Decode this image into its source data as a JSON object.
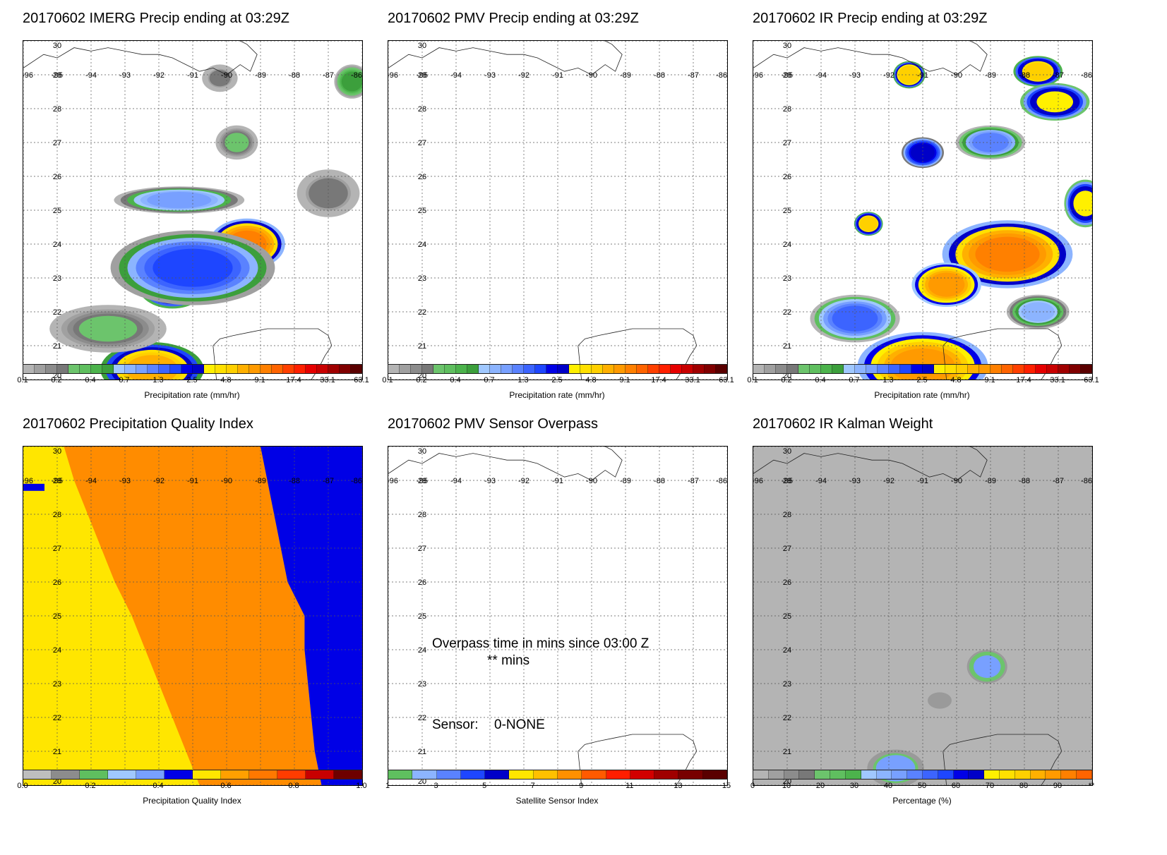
{
  "chart_data": [
    {
      "type": "heatmap",
      "title": "20170602 IMERG Precip ending at 03:29Z",
      "x_ticks": [
        "-96",
        "-95",
        "-94",
        "-93",
        "-92",
        "-91",
        "-90",
        "-89",
        "-88",
        "-87",
        "-86"
      ],
      "y_ticks": [
        "20",
        "21",
        "22",
        "23",
        "24",
        "25",
        "26",
        "27",
        "28",
        "29",
        "30"
      ],
      "xlim": [
        -96,
        -86
      ],
      "ylim": [
        20,
        30
      ],
      "colorbar": {
        "label": "Precipitation rate (mm/hr)",
        "tick_labels": [
          "0.1",
          "0.2",
          "0.4",
          "0.7",
          "1.3",
          "2.5",
          "4.8",
          "9.1",
          "17.4",
          "33.1",
          "63.1"
        ],
        "colors": [
          "#b4b4b4",
          "#a0a0a0",
          "#8c8c8c",
          "#787878",
          "#6cc46c",
          "#5fbf5f",
          "#4cb34c",
          "#3c9f3c",
          "#a0c8ff",
          "#8cb4ff",
          "#78a0ff",
          "#5a82ff",
          "#3c64ff",
          "#1e46ff",
          "#0000e6",
          "#0000c8",
          "#fff000",
          "#ffe000",
          "#ffd000",
          "#ffb000",
          "#ff9a00",
          "#ff8000",
          "#ff6400",
          "#ff4000",
          "#ff2000",
          "#e60000",
          "#c80000",
          "#a00000",
          "#800000",
          "#5a0000"
        ]
      },
      "features": [
        {
          "type": "blob",
          "lon": -89.4,
          "lat": 24.0,
          "rx": 1.0,
          "ry": 0.65,
          "intensity": 10
        },
        {
          "type": "blob",
          "lon": -91.6,
          "lat": 22.8,
          "rx": 0.9,
          "ry": 0.6,
          "intensity": 6
        },
        {
          "type": "blob",
          "lon": -91.0,
          "lat": 23.3,
          "rx": 2.3,
          "ry": 1.0,
          "intensity": 2
        },
        {
          "type": "blob",
          "lon": -92.2,
          "lat": 20.3,
          "rx": 1.4,
          "ry": 0.7,
          "intensity": 7
        },
        {
          "type": "blob",
          "lon": -91.4,
          "lat": 25.3,
          "rx": 1.8,
          "ry": 0.3,
          "intensity": 1
        },
        {
          "type": "blob",
          "lon": -93.5,
          "lat": 21.5,
          "rx": 1.6,
          "ry": 0.6,
          "intensity": 0.3
        },
        {
          "type": "blob",
          "lon": -86.3,
          "lat": 28.8,
          "rx": 0.4,
          "ry": 0.4,
          "intensity": 0.6
        },
        {
          "type": "blob",
          "lon": -89.7,
          "lat": 27.0,
          "rx": 0.5,
          "ry": 0.4,
          "intensity": 0.3
        },
        {
          "type": "blob",
          "lon": -87.0,
          "lat": 25.5,
          "rx": 0.8,
          "ry": 0.6,
          "intensity": 0.25
        },
        {
          "type": "blob",
          "lon": -90.2,
          "lat": 28.9,
          "rx": 0.4,
          "ry": 0.3,
          "intensity": 0.2
        }
      ]
    },
    {
      "type": "heatmap",
      "title": "20170602 PMV Precip ending at 03:29Z",
      "x_ticks": [
        "-96",
        "-95",
        "-94",
        "-93",
        "-92",
        "-91",
        "-90",
        "-89",
        "-88",
        "-87",
        "-86"
      ],
      "y_ticks": [
        "20",
        "21",
        "22",
        "23",
        "24",
        "25",
        "26",
        "27",
        "28",
        "29",
        "30"
      ],
      "xlim": [
        -96,
        -86
      ],
      "ylim": [
        20,
        30
      ],
      "colorbar": {
        "label": "Precipitation rate (mm/hr)",
        "tick_labels": [
          "0.1",
          "0.2",
          "0.4",
          "0.7",
          "1.3",
          "2.5",
          "4.8",
          "9.1",
          "17.4",
          "33.1",
          "63.1"
        ]
      },
      "features": []
    },
    {
      "type": "heatmap",
      "title": "20170602 IR Precip ending at 03:29Z",
      "x_ticks": [
        "-96",
        "-95",
        "-94",
        "-93",
        "-92",
        "-91",
        "-90",
        "-89",
        "-88",
        "-87",
        "-86"
      ],
      "y_ticks": [
        "20",
        "21",
        "22",
        "23",
        "24",
        "25",
        "26",
        "27",
        "28",
        "29",
        "30"
      ],
      "xlim": [
        -96,
        -86
      ],
      "ylim": [
        20,
        30
      ],
      "colorbar": {
        "label": "Precipitation rate (mm/hr)",
        "tick_labels": [
          "0.1",
          "0.2",
          "0.4",
          "0.7",
          "1.3",
          "2.5",
          "4.8",
          "9.1",
          "17.4",
          "33.1",
          "63.1"
        ]
      },
      "features": [
        {
          "type": "blob",
          "lon": -88.5,
          "lat": 23.7,
          "rx": 1.8,
          "ry": 0.9,
          "intensity": 10
        },
        {
          "type": "blob",
          "lon": -90.3,
          "lat": 22.8,
          "rx": 0.9,
          "ry": 0.55,
          "intensity": 8
        },
        {
          "type": "blob",
          "lon": -91.0,
          "lat": 20.4,
          "rx": 1.8,
          "ry": 0.9,
          "intensity": 9
        },
        {
          "type": "blob",
          "lon": -87.6,
          "lat": 29.1,
          "rx": 0.6,
          "ry": 0.35,
          "intensity": 5
        },
        {
          "type": "blob",
          "lon": -87.1,
          "lat": 28.2,
          "rx": 0.9,
          "ry": 0.45,
          "intensity": 4
        },
        {
          "type": "blob",
          "lon": -91.4,
          "lat": 29.0,
          "rx": 0.35,
          "ry": 0.3,
          "intensity": 6
        },
        {
          "type": "blob",
          "lon": -92.6,
          "lat": 24.6,
          "rx": 0.3,
          "ry": 0.25,
          "intensity": 5
        },
        {
          "type": "blob",
          "lon": -91.0,
          "lat": 26.7,
          "rx": 0.5,
          "ry": 0.35,
          "intensity": 3
        },
        {
          "type": "blob",
          "lon": -86.2,
          "lat": 25.2,
          "rx": 0.5,
          "ry": 0.6,
          "intensity": 4
        },
        {
          "type": "blob",
          "lon": -93.0,
          "lat": 21.8,
          "rx": 1.2,
          "ry": 0.6,
          "intensity": 1.5
        },
        {
          "type": "blob",
          "lon": -87.6,
          "lat": 22.0,
          "rx": 0.8,
          "ry": 0.4,
          "intensity": 0.8
        },
        {
          "type": "blob",
          "lon": -89.0,
          "lat": 27.0,
          "rx": 0.9,
          "ry": 0.4,
          "intensity": 1.2
        }
      ]
    },
    {
      "type": "heatmap",
      "title": "20170602 Precipitation Quality Index",
      "x_ticks": [
        "-96",
        "-95",
        "-94",
        "-93",
        "-92",
        "-91",
        "-90",
        "-89",
        "-88",
        "-87",
        "-86"
      ],
      "y_ticks": [
        "20",
        "21",
        "22",
        "23",
        "24",
        "25",
        "26",
        "27",
        "28",
        "29",
        "30"
      ],
      "xlim": [
        -96,
        -86
      ],
      "ylim": [
        20,
        30
      ],
      "colorbar": {
        "label": "Precipitation Quality Index",
        "tick_labels": [
          "0.0",
          "0.2",
          "0.4",
          "0.6",
          "0.8",
          "1.0"
        ],
        "colors": [
          "#bebebe",
          "#8c8c8c",
          "#5fbf5f",
          "#a0c8ff",
          "#78a0ff",
          "#0000e6",
          "#ffe600",
          "#ffa000",
          "#ff7800",
          "#ff3c00",
          "#c80000",
          "#6e0000"
        ]
      },
      "regions": [
        {
          "name": "yellow",
          "value": 0.65,
          "color": "#ffe600"
        },
        {
          "name": "orange",
          "value": 0.78,
          "color": "#ff8c00"
        },
        {
          "name": "blue",
          "value": 0.47,
          "color": "#0000e6"
        }
      ]
    },
    {
      "type": "heatmap",
      "title": "20170602 PMV Sensor Overpass",
      "x_ticks": [
        "-96",
        "-95",
        "-94",
        "-93",
        "-92",
        "-91",
        "-90",
        "-89",
        "-88",
        "-87",
        "-86"
      ],
      "y_ticks": [
        "20",
        "21",
        "22",
        "23",
        "24",
        "25",
        "26",
        "27",
        "28",
        "29",
        "30"
      ],
      "xlim": [
        -96,
        -86
      ],
      "ylim": [
        20,
        30
      ],
      "annotations": {
        "overpass_line1": "Overpass time in mins since 03:00 Z",
        "overpass_line2": "** mins",
        "sensor_label": "Sensor:",
        "sensor_value": "0-NONE"
      },
      "colorbar": {
        "label": "Satellite Sensor Index",
        "tick_labels": [
          "1",
          "3",
          "5",
          "7",
          "9",
          "11",
          "13",
          "15"
        ],
        "colors": [
          "#5fbf5f",
          "#8cb4ff",
          "#5a82ff",
          "#1e46ff",
          "#0000c8",
          "#ffe600",
          "#ffc000",
          "#ff9000",
          "#ff5a00",
          "#ff1e00",
          "#d20000",
          "#a00000",
          "#780000",
          "#5a0000"
        ]
      },
      "features": []
    },
    {
      "type": "heatmap",
      "title": "20170602 IR Kalman Weight",
      "x_ticks": [
        "-96",
        "-95",
        "-94",
        "-93",
        "-92",
        "-91",
        "-90",
        "-89",
        "-88",
        "-87",
        "-86"
      ],
      "y_ticks": [
        "20",
        "21",
        "22",
        "23",
        "24",
        "25",
        "26",
        "27",
        "28",
        "29",
        "30"
      ],
      "xlim": [
        -96,
        -86
      ],
      "ylim": [
        20,
        30
      ],
      "colorbar": {
        "label": "Percentage (%)",
        "tick_labels": [
          "0",
          "10",
          "20",
          "30",
          "40",
          "50",
          "60",
          "70",
          "80",
          "90",
          "**"
        ],
        "colors": [
          "#b4b4b4",
          "#a0a0a0",
          "#8c8c8c",
          "#787878",
          "#6cc46c",
          "#5fbf5f",
          "#4cb34c",
          "#a0c8ff",
          "#8cb4ff",
          "#78a0ff",
          "#5a82ff",
          "#3c64ff",
          "#1e46ff",
          "#0000e6",
          "#0000c8",
          "#fff000",
          "#ffe000",
          "#ffd000",
          "#ffb000",
          "#ff9a00",
          "#ff8000",
          "#ff6400"
        ]
      },
      "background_value": 15,
      "features": [
        {
          "type": "blob",
          "lon": -89.1,
          "lat": 23.5,
          "rx": 0.6,
          "ry": 0.5,
          "intensity": 35
        },
        {
          "type": "blob",
          "lon": -90.5,
          "lat": 22.5,
          "rx": 0.5,
          "ry": 0.3,
          "intensity": 12
        },
        {
          "type": "blob",
          "lon": -91.8,
          "lat": 20.5,
          "rx": 0.8,
          "ry": 0.5,
          "intensity": 38
        }
      ]
    }
  ]
}
